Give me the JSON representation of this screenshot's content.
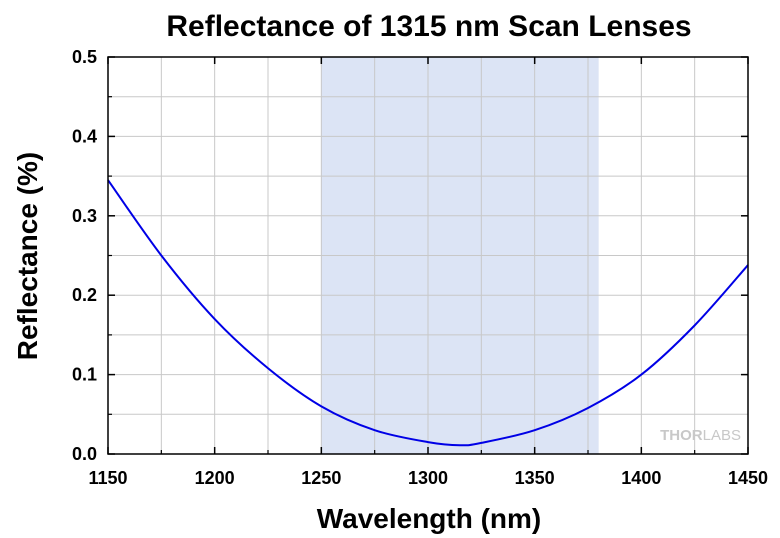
{
  "chart_data": {
    "type": "line",
    "title": "Reflectance of 1315 nm Scan Lenses",
    "xlabel": "Wavelength (nm)",
    "ylabel": "Reflectance (%)",
    "xlim": [
      1150,
      1450
    ],
    "ylim": [
      0.0,
      0.5
    ],
    "x_ticks": [
      1150,
      1200,
      1250,
      1300,
      1350,
      1400,
      1450
    ],
    "x_tick_labels": [
      "1150",
      "1200",
      "1250",
      "1300",
      "1350",
      "1400",
      "1450"
    ],
    "y_ticks": [
      0.0,
      0.1,
      0.2,
      0.3,
      0.4,
      0.5
    ],
    "y_tick_labels": [
      "0.0",
      "0.1",
      "0.2",
      "0.3",
      "0.4",
      "0.5"
    ],
    "grid": true,
    "shaded_region": {
      "x": [
        1250,
        1380
      ],
      "color": "#dce4f5"
    },
    "series": [
      {
        "name": "Reflectance",
        "color": "#0000e6",
        "x": [
          1150,
          1175,
          1200,
          1225,
          1250,
          1275,
          1300,
          1315,
          1325,
          1350,
          1375,
          1400,
          1425,
          1450
        ],
        "y": [
          0.345,
          0.25,
          0.17,
          0.108,
          0.06,
          0.03,
          0.015,
          0.011,
          0.014,
          0.03,
          0.058,
          0.1,
          0.162,
          0.238
        ]
      }
    ]
  },
  "watermark": {
    "brand_bold": "THOR",
    "brand_light": "LABS"
  }
}
